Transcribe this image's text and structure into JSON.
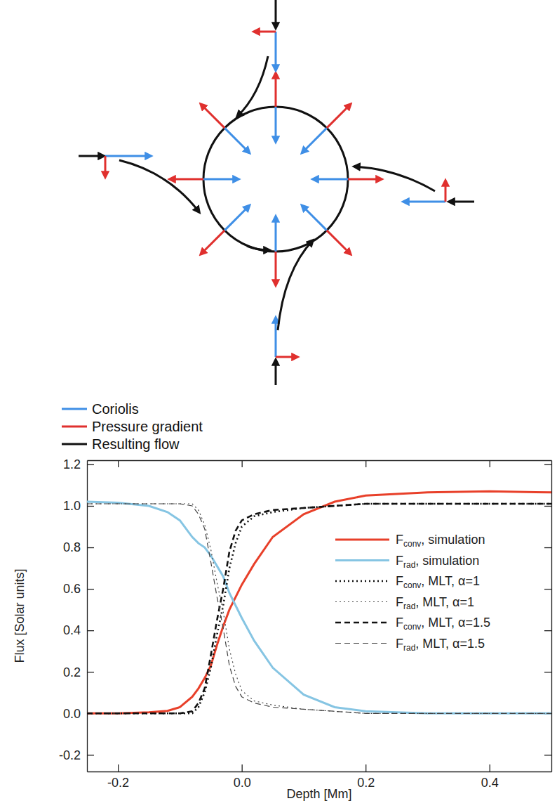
{
  "diagram": {
    "legend": [
      {
        "label": "Coriolis",
        "color": "#3f8fe6"
      },
      {
        "label": "Pressure gradient",
        "color": "#e0302e"
      },
      {
        "label": "Resulting flow",
        "color": "#111111"
      }
    ]
  },
  "chart_data": {
    "type": "line",
    "xlabel": "Depth [Mm]",
    "ylabel": "Flux [Solar units]",
    "x": [
      -0.25,
      -0.2,
      -0.15,
      -0.12,
      -0.1,
      -0.08,
      -0.07,
      -0.06,
      -0.05,
      -0.04,
      -0.03,
      -0.02,
      -0.01,
      0.0,
      0.02,
      0.05,
      0.1,
      0.15,
      0.2,
      0.3,
      0.4,
      0.5
    ],
    "xlim": [
      -0.25,
      0.5
    ],
    "xticks": [
      -0.2,
      {
        "value": 0,
        "label": "0.0"
      },
      0.2,
      0.4
    ],
    "ylim": [
      -0.28,
      1.22
    ],
    "yticks": [
      -0.2,
      {
        "value": 0,
        "label": "0.0"
      },
      0.2,
      0.4,
      0.6,
      0.8,
      {
        "value": 1,
        "label": "1.0"
      },
      1.2
    ],
    "legend": "right",
    "series": [
      {
        "name": "Fconv, simulation",
        "color": "#e8402a",
        "line_style": "solid",
        "values": [
          0,
          0,
          0.005,
          0.012,
          0.03,
          0.08,
          0.12,
          0.17,
          0.23,
          0.33,
          0.42,
          0.5,
          0.56,
          0.62,
          0.72,
          0.85,
          0.96,
          1.02,
          1.05,
          1.065,
          1.07,
          1.065
        ]
      },
      {
        "name": "Frad, simulation",
        "color": "#86c5e3",
        "line_style": "solid",
        "values": [
          1.02,
          1.015,
          1.0,
          0.97,
          0.93,
          0.85,
          0.82,
          0.8,
          0.76,
          0.71,
          0.66,
          0.58,
          0.52,
          0.46,
          0.35,
          0.22,
          0.09,
          0.03,
          0.01,
          0,
          0,
          0
        ]
      },
      {
        "name": "Fconv, MLT, α=1",
        "color": "#111111",
        "line_style": "dotted",
        "values": [
          0,
          0,
          0,
          0,
          0,
          0,
          0.03,
          0.1,
          0.22,
          0.38,
          0.52,
          0.7,
          0.82,
          0.9,
          0.95,
          0.97,
          0.99,
          1.0,
          1.01,
          1.01,
          1.01,
          1.01
        ]
      },
      {
        "name": "Frad, MLT, α=1",
        "color": "#444444",
        "line_style": "dotted",
        "values": [
          1.01,
          1.01,
          1.01,
          1.01,
          1.01,
          1.01,
          0.98,
          0.91,
          0.79,
          0.63,
          0.49,
          0.31,
          0.19,
          0.11,
          0.06,
          0.04,
          0.02,
          0.01,
          0,
          0,
          0,
          0
        ]
      },
      {
        "name": "Fconv, MLT, α=1.5",
        "color": "#111111",
        "line_style": "dashed",
        "values": [
          0,
          0,
          0,
          0,
          0,
          0.01,
          0.05,
          0.12,
          0.28,
          0.45,
          0.6,
          0.78,
          0.88,
          0.93,
          0.96,
          0.98,
          0.99,
          1.0,
          1.01,
          1.01,
          1.01,
          1.01
        ]
      },
      {
        "name": "Frad, MLT, α=1.5",
        "color": "#444444",
        "line_style": "dashed",
        "values": [
          1.01,
          1.01,
          1.01,
          1.01,
          1.01,
          1.0,
          0.96,
          0.89,
          0.73,
          0.56,
          0.41,
          0.23,
          0.13,
          0.08,
          0.05,
          0.03,
          0.02,
          0.01,
          0,
          0,
          0,
          0
        ]
      }
    ]
  }
}
